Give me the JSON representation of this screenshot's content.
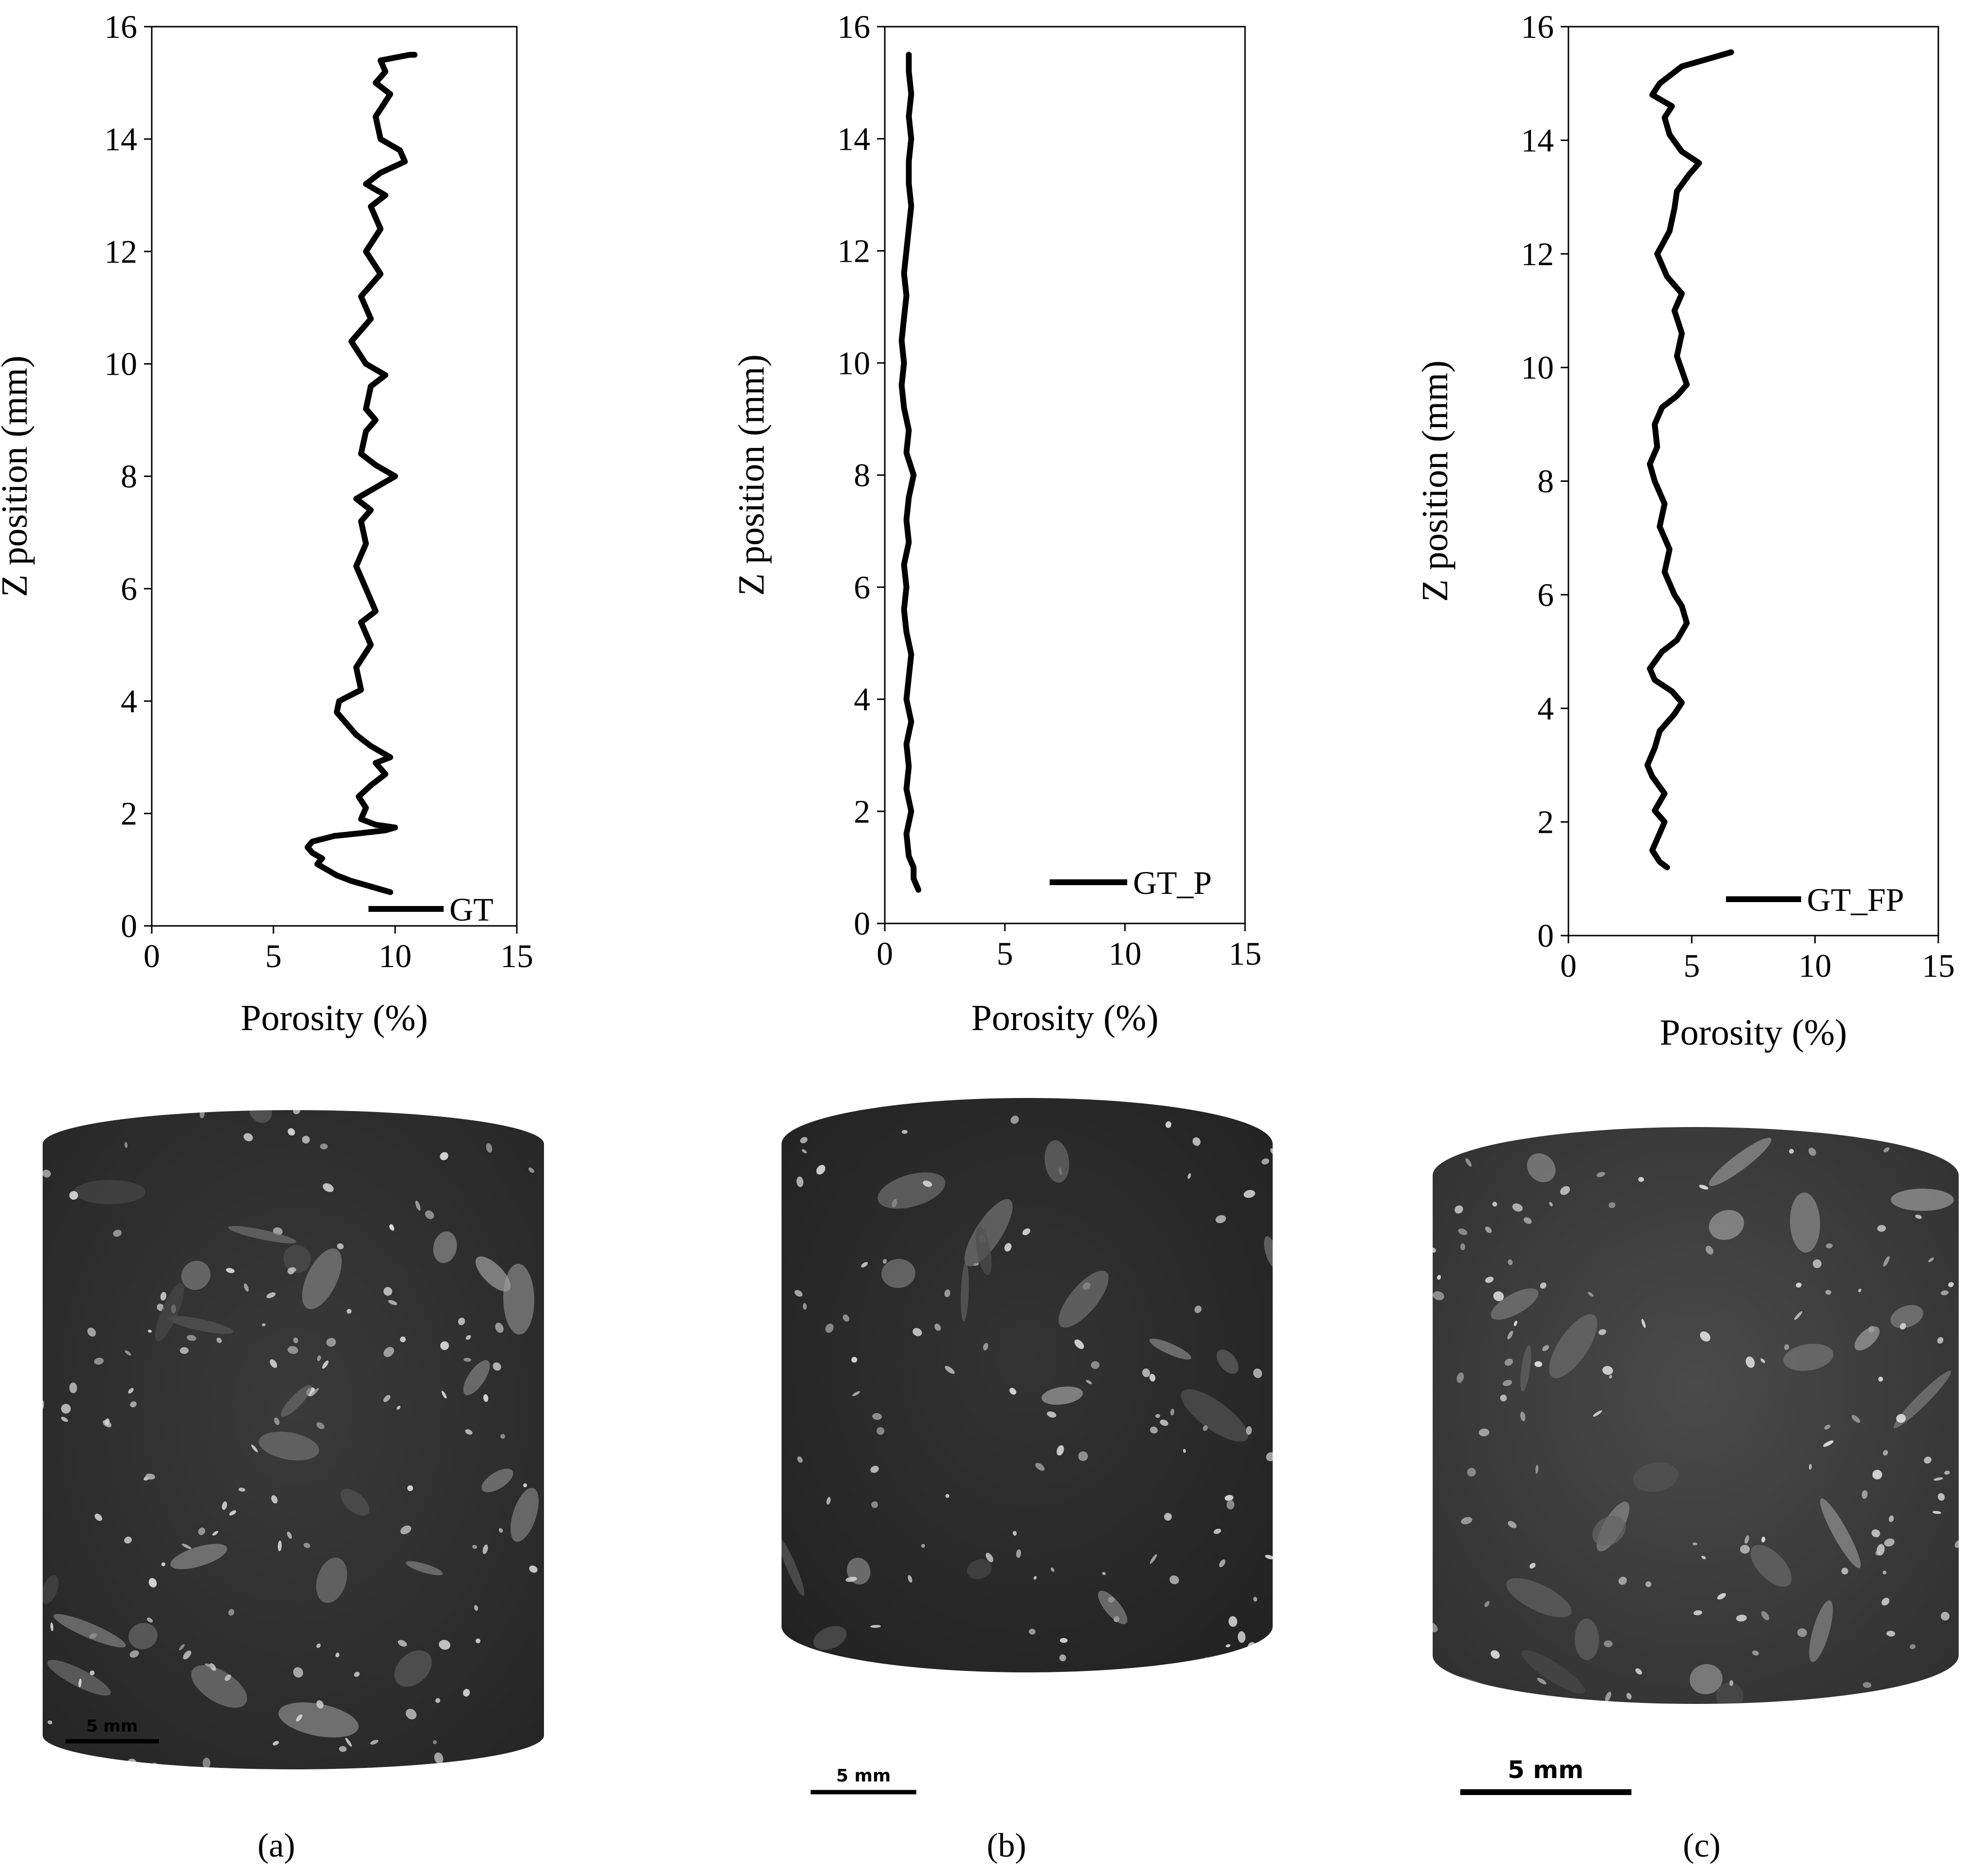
{
  "chart_data": [
    {
      "type": "line",
      "panel_label": "(a)",
      "xlabel": "Porosity (%)",
      "ylabel": "Z position (mm)",
      "xlim": [
        0,
        15
      ],
      "ylim": [
        0,
        16
      ],
      "xticks": [
        "0",
        "5",
        "10",
        "15"
      ],
      "yticks": [
        "0",
        "2",
        "4",
        "6",
        "8",
        "10",
        "12",
        "14",
        "16"
      ],
      "legend_position": "bottom-right",
      "grid": false,
      "series": [
        {
          "name": "GT",
          "points": [
            [
              9.8,
              0.6
            ],
            [
              9.0,
              0.7
            ],
            [
              8.2,
              0.8
            ],
            [
              7.6,
              0.9
            ],
            [
              7.2,
              1.0
            ],
            [
              6.8,
              1.1
            ],
            [
              7.0,
              1.2
            ],
            [
              6.6,
              1.3
            ],
            [
              6.4,
              1.4
            ],
            [
              6.6,
              1.5
            ],
            [
              7.5,
              1.6
            ],
            [
              8.6,
              1.65
            ],
            [
              9.6,
              1.7
            ],
            [
              10.0,
              1.75
            ],
            [
              9.2,
              1.8
            ],
            [
              8.6,
              1.9
            ],
            [
              8.8,
              2.1
            ],
            [
              8.5,
              2.3
            ],
            [
              9.0,
              2.5
            ],
            [
              9.6,
              2.7
            ],
            [
              9.2,
              2.9
            ],
            [
              9.8,
              3.0
            ],
            [
              9.0,
              3.2
            ],
            [
              8.4,
              3.4
            ],
            [
              8.0,
              3.6
            ],
            [
              7.6,
              3.8
            ],
            [
              7.7,
              4.0
            ],
            [
              8.6,
              4.2
            ],
            [
              8.4,
              4.6
            ],
            [
              9.0,
              5.0
            ],
            [
              8.6,
              5.4
            ],
            [
              9.2,
              5.6
            ],
            [
              8.8,
              6.0
            ],
            [
              8.4,
              6.4
            ],
            [
              8.8,
              6.8
            ],
            [
              8.6,
              7.2
            ],
            [
              9.0,
              7.4
            ],
            [
              8.4,
              7.6
            ],
            [
              9.6,
              7.9
            ],
            [
              10.0,
              8.0
            ],
            [
              9.2,
              8.2
            ],
            [
              8.6,
              8.4
            ],
            [
              8.8,
              8.8
            ],
            [
              9.2,
              9.0
            ],
            [
              8.8,
              9.2
            ],
            [
              9.0,
              9.6
            ],
            [
              9.6,
              9.8
            ],
            [
              8.8,
              10.0
            ],
            [
              8.2,
              10.4
            ],
            [
              9.0,
              10.8
            ],
            [
              8.6,
              11.2
            ],
            [
              9.4,
              11.6
            ],
            [
              8.8,
              12.0
            ],
            [
              9.4,
              12.4
            ],
            [
              9.0,
              12.8
            ],
            [
              9.6,
              13.0
            ],
            [
              8.8,
              13.2
            ],
            [
              9.4,
              13.4
            ],
            [
              10.4,
              13.6
            ],
            [
              10.2,
              13.8
            ],
            [
              9.4,
              14.0
            ],
            [
              9.2,
              14.4
            ],
            [
              9.8,
              14.8
            ],
            [
              9.2,
              15.0
            ],
            [
              9.6,
              15.2
            ],
            [
              9.4,
              15.4
            ],
            [
              10.6,
              15.5
            ],
            [
              10.8,
              15.5
            ]
          ]
        }
      ]
    },
    {
      "type": "line",
      "panel_label": "(b)",
      "xlabel": "Porosity (%)",
      "ylabel": "Z position (mm)",
      "xlim": [
        0,
        15
      ],
      "ylim": [
        0,
        16
      ],
      "xticks": [
        "0",
        "5",
        "10",
        "15"
      ],
      "yticks": [
        "0",
        "2",
        "4",
        "6",
        "8",
        "10",
        "12",
        "14",
        "16"
      ],
      "legend_position": "bottom-right",
      "grid": false,
      "series": [
        {
          "name": "GT_P",
          "points": [
            [
              1.4,
              0.6
            ],
            [
              1.2,
              0.8
            ],
            [
              1.2,
              1.0
            ],
            [
              1.0,
              1.2
            ],
            [
              0.9,
              1.6
            ],
            [
              1.1,
              2.0
            ],
            [
              0.9,
              2.4
            ],
            [
              1.0,
              2.8
            ],
            [
              0.9,
              3.2
            ],
            [
              1.1,
              3.6
            ],
            [
              0.9,
              4.0
            ],
            [
              1.0,
              4.4
            ],
            [
              1.1,
              4.8
            ],
            [
              0.9,
              5.2
            ],
            [
              0.8,
              5.6
            ],
            [
              0.9,
              6.0
            ],
            [
              0.8,
              6.4
            ],
            [
              1.0,
              6.8
            ],
            [
              0.9,
              7.2
            ],
            [
              1.0,
              7.6
            ],
            [
              1.2,
              8.0
            ],
            [
              0.9,
              8.4
            ],
            [
              1.0,
              8.8
            ],
            [
              0.8,
              9.2
            ],
            [
              0.7,
              9.6
            ],
            [
              0.8,
              10.0
            ],
            [
              0.7,
              10.4
            ],
            [
              0.8,
              10.8
            ],
            [
              0.9,
              11.2
            ],
            [
              0.8,
              11.6
            ],
            [
              0.9,
              12.0
            ],
            [
              1.0,
              12.4
            ],
            [
              1.1,
              12.8
            ],
            [
              1.0,
              13.2
            ],
            [
              1.0,
              13.6
            ],
            [
              1.1,
              14.0
            ],
            [
              1.0,
              14.4
            ],
            [
              1.1,
              14.8
            ],
            [
              1.0,
              15.2
            ],
            [
              1.0,
              15.5
            ]
          ]
        }
      ]
    },
    {
      "type": "line",
      "panel_label": "(c)",
      "xlabel": "Porosity (%)",
      "ylabel": "Z position (mm)",
      "xlim": [
        0,
        15
      ],
      "ylim": [
        0,
        16
      ],
      "xticks": [
        "0",
        "5",
        "10",
        "15"
      ],
      "yticks": [
        "0",
        "2",
        "4",
        "6",
        "8",
        "10",
        "12",
        "14",
        "16"
      ],
      "legend_position": "bottom-right",
      "grid": false,
      "series": [
        {
          "name": "GT_FP",
          "points": [
            [
              4.0,
              1.2
            ],
            [
              3.7,
              1.3
            ],
            [
              3.4,
              1.5
            ],
            [
              3.7,
              1.8
            ],
            [
              3.9,
              2.0
            ],
            [
              3.5,
              2.2
            ],
            [
              3.9,
              2.5
            ],
            [
              3.4,
              2.8
            ],
            [
              3.2,
              3.0
            ],
            [
              3.5,
              3.3
            ],
            [
              3.7,
              3.6
            ],
            [
              4.3,
              3.9
            ],
            [
              4.6,
              4.1
            ],
            [
              4.2,
              4.3
            ],
            [
              3.5,
              4.5
            ],
            [
              3.3,
              4.7
            ],
            [
              3.8,
              5.0
            ],
            [
              4.4,
              5.2
            ],
            [
              4.8,
              5.5
            ],
            [
              4.6,
              5.8
            ],
            [
              4.3,
              6.0
            ],
            [
              3.9,
              6.4
            ],
            [
              4.1,
              6.8
            ],
            [
              3.7,
              7.2
            ],
            [
              3.9,
              7.6
            ],
            [
              3.5,
              8.0
            ],
            [
              3.3,
              8.3
            ],
            [
              3.6,
              8.6
            ],
            [
              3.5,
              9.0
            ],
            [
              3.8,
              9.3
            ],
            [
              4.4,
              9.5
            ],
            [
              4.8,
              9.7
            ],
            [
              4.4,
              10.2
            ],
            [
              4.6,
              10.6
            ],
            [
              4.3,
              11.0
            ],
            [
              4.6,
              11.3
            ],
            [
              4.0,
              11.6
            ],
            [
              3.6,
              12.0
            ],
            [
              4.1,
              12.4
            ],
            [
              4.3,
              12.8
            ],
            [
              4.4,
              13.1
            ],
            [
              4.9,
              13.4
            ],
            [
              5.3,
              13.6
            ],
            [
              4.6,
              13.8
            ],
            [
              4.1,
              14.1
            ],
            [
              3.9,
              14.4
            ],
            [
              4.2,
              14.6
            ],
            [
              3.4,
              14.8
            ],
            [
              3.7,
              15.0
            ],
            [
              4.6,
              15.3
            ],
            [
              5.8,
              15.45
            ],
            [
              6.6,
              15.55
            ]
          ]
        }
      ]
    }
  ],
  "scale_bars": [
    "5 mm",
    "5 mm",
    "5 mm"
  ],
  "colors": {
    "line": "#000000",
    "axis": "#000000",
    "background": "#ffffff",
    "ct_dark": "#2e2e2e",
    "ct_light": "#c8c8c8"
  }
}
